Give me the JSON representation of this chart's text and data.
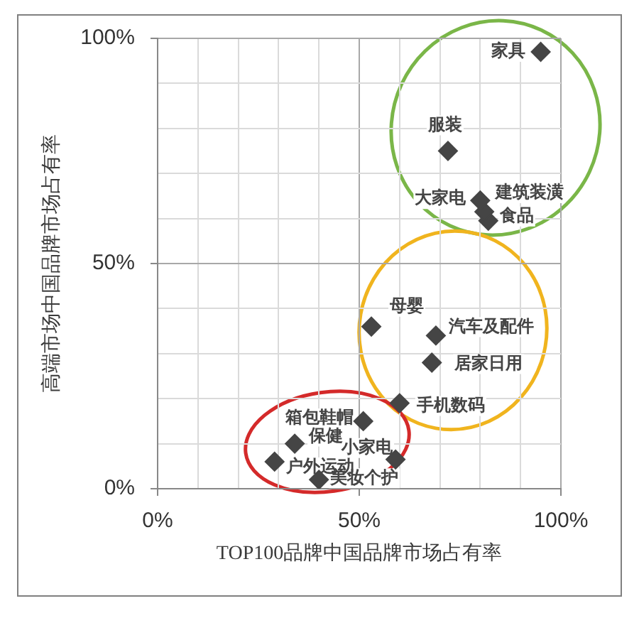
{
  "chart_data": {
    "type": "scatter",
    "xlabel": "TOP100品牌中国品牌市场占有率",
    "ylabel": "高端市场中国品牌市场占有率",
    "xlim": [
      0,
      100
    ],
    "ylim": [
      0,
      100
    ],
    "xticks": [
      {
        "value": 0,
        "label": "0%"
      },
      {
        "value": 10,
        "label": null
      },
      {
        "value": 20,
        "label": null
      },
      {
        "value": 30,
        "label": null
      },
      {
        "value": 40,
        "label": null
      },
      {
        "value": 50,
        "label": "50%"
      },
      {
        "value": 60,
        "label": null
      },
      {
        "value": 70,
        "label": null
      },
      {
        "value": 80,
        "label": null
      },
      {
        "value": 90,
        "label": null
      },
      {
        "value": 100,
        "label": "100%"
      }
    ],
    "yticks": [
      {
        "value": 0,
        "label": "0%"
      },
      {
        "value": 10,
        "label": null
      },
      {
        "value": 20,
        "label": null
      },
      {
        "value": 30,
        "label": null
      },
      {
        "value": 40,
        "label": null
      },
      {
        "value": 50,
        "label": "50%"
      },
      {
        "value": 60,
        "label": null
      },
      {
        "value": 70,
        "label": null
      },
      {
        "value": 80,
        "label": null
      },
      {
        "value": 90,
        "label": null
      },
      {
        "value": 100,
        "label": "100%"
      }
    ],
    "grid": true,
    "marker": "diamond",
    "series": [
      {
        "name": "家具",
        "color": "#454545",
        "x": [
          95
        ],
        "values": [
          97
        ]
      },
      {
        "name": "服装",
        "color": "#454545",
        "x": [
          72
        ],
        "values": [
          75
        ]
      },
      {
        "name": "大家电",
        "color": "#454545",
        "x": [
          80
        ],
        "values": [
          64
        ]
      },
      {
        "name": "建筑装潢",
        "color": "#454545",
        "x": [
          81
        ],
        "values": [
          61.5
        ]
      },
      {
        "name": "食品",
        "color": "#454545",
        "x": [
          82
        ],
        "values": [
          59.5
        ]
      },
      {
        "name": "母婴",
        "color": "#454545",
        "x": [
          53
        ],
        "values": [
          36
        ]
      },
      {
        "name": "汽车及配件",
        "color": "#454545",
        "x": [
          69
        ],
        "values": [
          34
        ]
      },
      {
        "name": "居家日用",
        "color": "#454545",
        "x": [
          68
        ],
        "values": [
          28
        ]
      },
      {
        "name": "手机数码",
        "color": "#454545",
        "x": [
          60
        ],
        "values": [
          19
        ]
      },
      {
        "name": "箱包鞋帽",
        "color": "#454545",
        "x": [
          51
        ],
        "values": [
          15
        ]
      },
      {
        "name": "保健",
        "color": "#454545",
        "x": [
          34
        ],
        "values": [
          10
        ]
      },
      {
        "name": "户外运动",
        "color": "#454545",
        "x": [
          29
        ],
        "values": [
          6
        ]
      },
      {
        "name": "小家电",
        "color": "#454545",
        "x": [
          59
        ],
        "values": [
          6.5
        ]
      },
      {
        "name": "美妆个护",
        "color": "#454545",
        "x": [
          40
        ],
        "values": [
          2
        ]
      }
    ]
  }
}
